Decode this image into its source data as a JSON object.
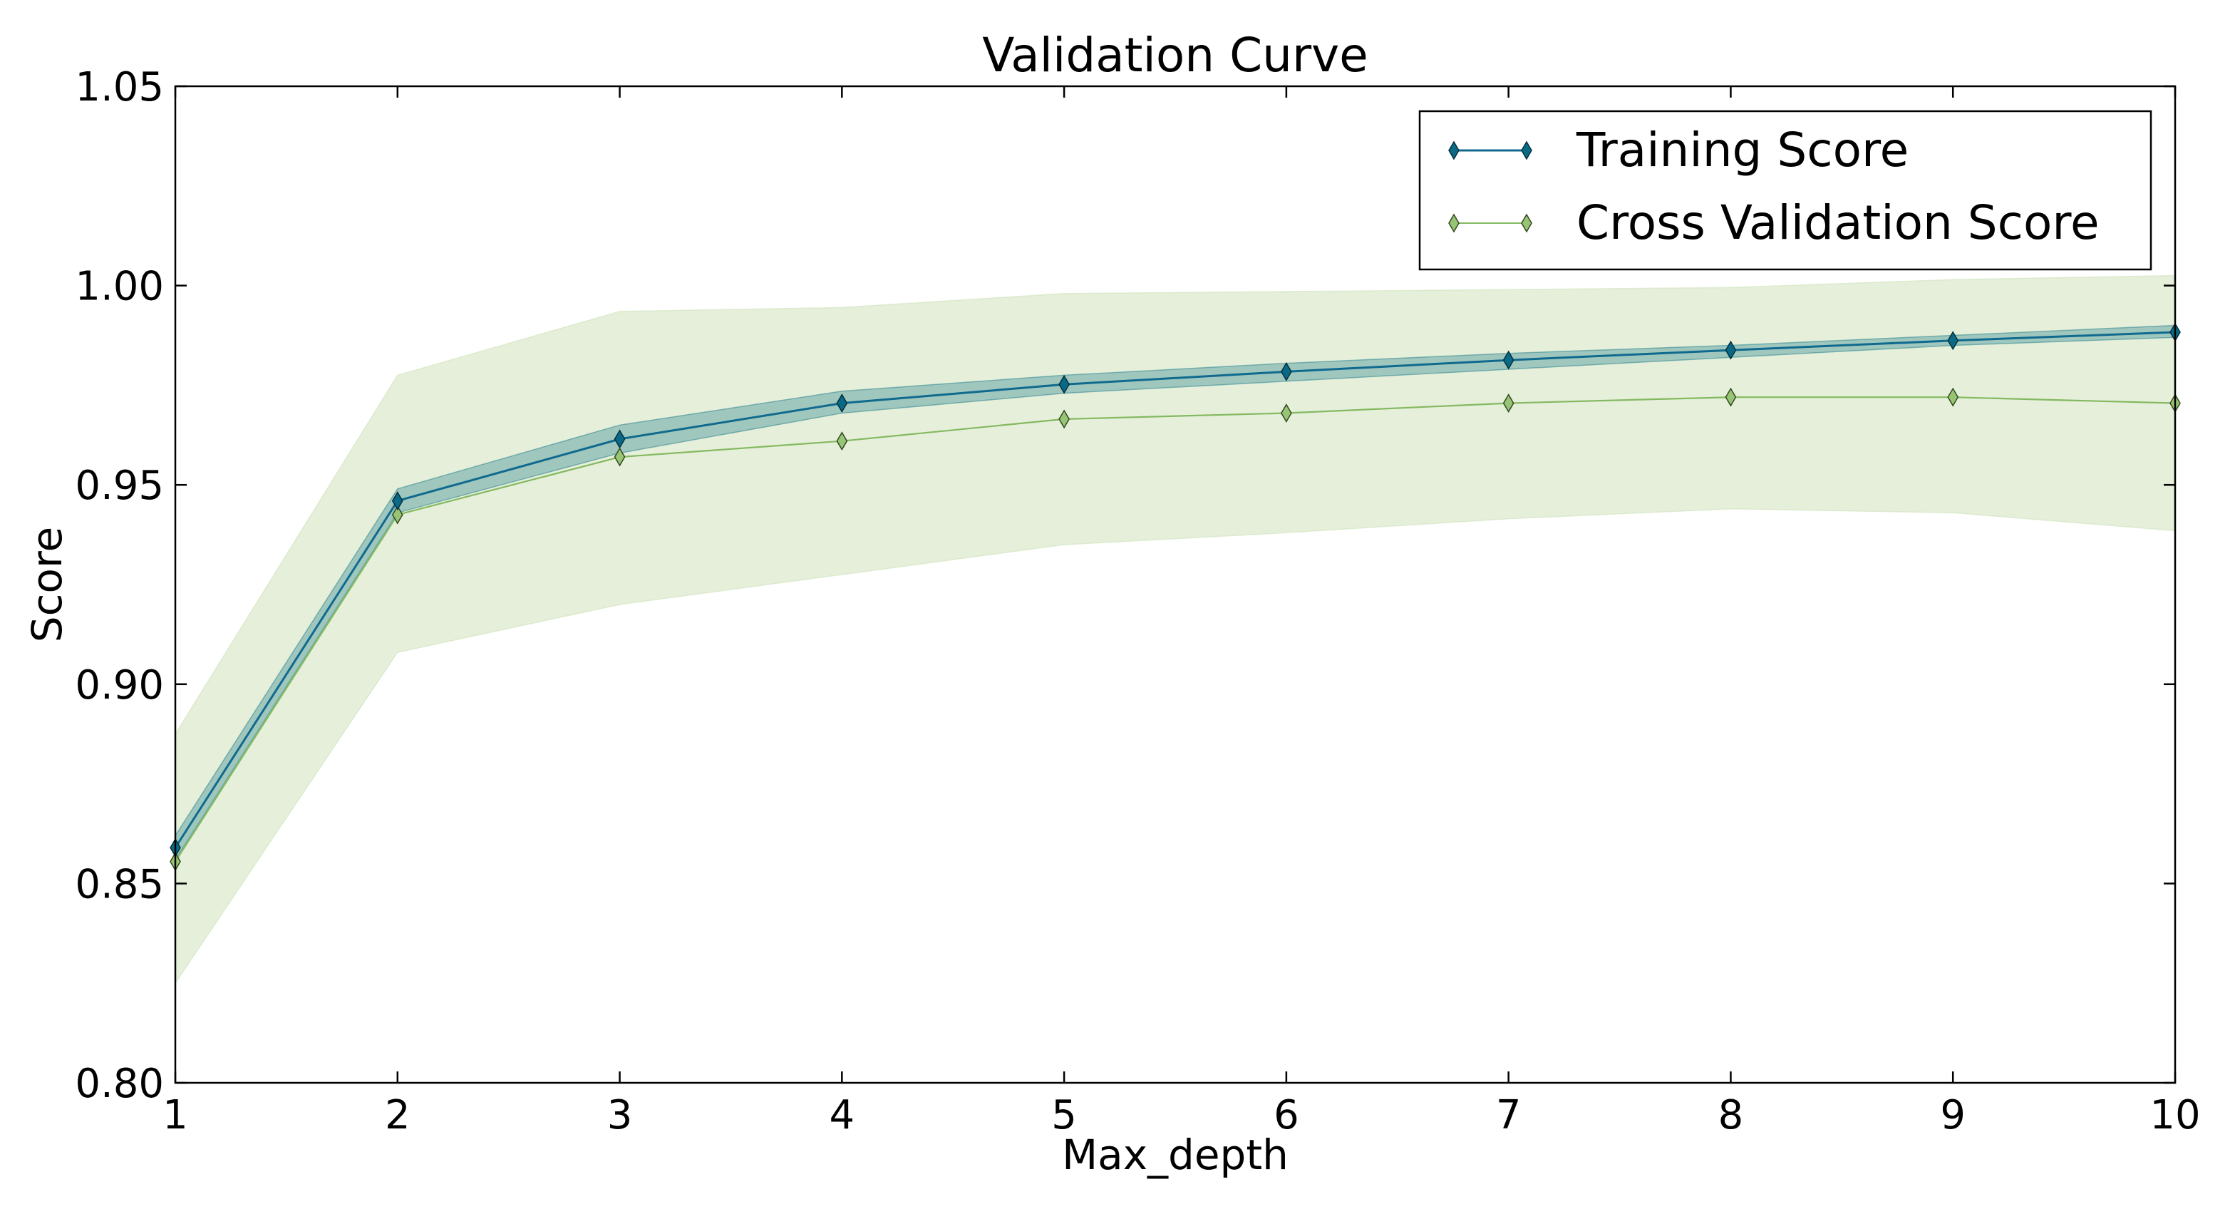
{
  "chart_data": {
    "type": "line",
    "title": "Validation Curve",
    "xlabel": "Max_depth",
    "ylabel": "Score",
    "x": [
      1,
      2,
      3,
      4,
      5,
      6,
      7,
      8,
      9,
      10
    ],
    "xlim": [
      1,
      10
    ],
    "ylim": [
      0.8,
      1.05
    ],
    "xticks": [
      "1",
      "2",
      "3",
      "4",
      "5",
      "6",
      "7",
      "8",
      "9",
      "10"
    ],
    "yticks": [
      "0.80",
      "0.85",
      "0.90",
      "0.95",
      "1.00",
      "1.05"
    ],
    "grid": false,
    "legend_position": "top-right",
    "series": [
      {
        "name": "Training Score",
        "color": "#0f6a8e",
        "marker_color": "#0a6a86",
        "band_color": "#3a8c94",
        "band_opacity": 0.4,
        "values": [
          0.859,
          0.946,
          0.9615,
          0.9705,
          0.9752,
          0.9784,
          0.9813,
          0.9838,
          0.9862,
          0.9883
        ],
        "lower": [
          0.856,
          0.943,
          0.958,
          0.968,
          0.973,
          0.976,
          0.979,
          0.982,
          0.985,
          0.987
        ],
        "upper": [
          0.862,
          0.949,
          0.965,
          0.9735,
          0.9775,
          0.9805,
          0.983,
          0.985,
          0.9875,
          0.99
        ]
      },
      {
        "name": "Cross Validation Score",
        "color": "#84b960",
        "marker_color": "#98c475",
        "band_color": "#cfe2bb",
        "band_opacity": 0.55,
        "values": [
          0.8555,
          0.9425,
          0.957,
          0.961,
          0.9665,
          0.968,
          0.9705,
          0.972,
          0.972,
          0.9705
        ],
        "lower": [
          0.825,
          0.908,
          0.92,
          0.9275,
          0.935,
          0.938,
          0.9415,
          0.944,
          0.943,
          0.9385
        ],
        "upper": [
          0.8875,
          0.9775,
          0.9935,
          0.9945,
          0.998,
          0.9985,
          0.999,
          0.9995,
          1.0015,
          1.0025
        ]
      }
    ]
  }
}
